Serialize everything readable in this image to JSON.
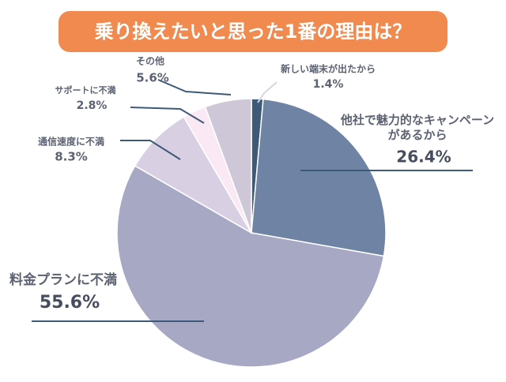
{
  "chart_data": {
    "type": "pie",
    "title": "乗り換えたいと思った1番の理由は？",
    "categories": [
      "新しい端末が出たから",
      "他社で魅力的なキャンペーンがあるから",
      "料金プランに不満",
      "通信速度に不満",
      "サポートに不満",
      "その他"
    ],
    "values": [
      1.4,
      26.4,
      55.6,
      8.3,
      2.8,
      5.6
    ],
    "value_labels": [
      "1.4%",
      "26.4%",
      "55.6%",
      "8.3%",
      "2.8%",
      "5.6%"
    ],
    "colors": [
      "#3d5a78",
      "#6f84a4",
      "#a7a8c4",
      "#d8d0e2",
      "#fbe8f5",
      "#cdc7d7"
    ]
  }
}
